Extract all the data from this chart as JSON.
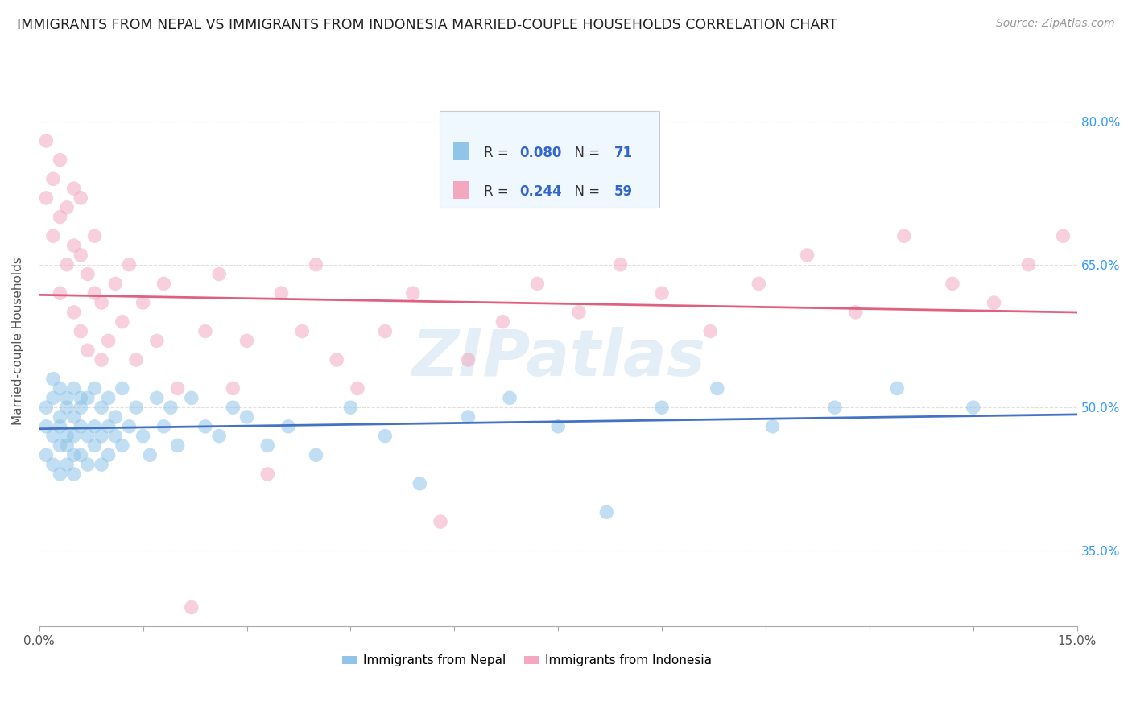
{
  "title": "IMMIGRANTS FROM NEPAL VS IMMIGRANTS FROM INDONESIA MARRIED-COUPLE HOUSEHOLDS CORRELATION CHART",
  "source": "Source: ZipAtlas.com",
  "ylabel": "Married-couple Households",
  "xlim": [
    0.0,
    0.15
  ],
  "ylim": [
    0.27,
    0.87
  ],
  "xticks": [
    0.0,
    0.015,
    0.03,
    0.045,
    0.06,
    0.075,
    0.09,
    0.105,
    0.12,
    0.135,
    0.15
  ],
  "xticklabels": [
    "0.0%",
    "",
    "",
    "",
    "",
    "",
    "",
    "",
    "",
    "",
    "15.0%"
  ],
  "yticks": [
    0.35,
    0.5,
    0.65,
    0.8
  ],
  "yticklabels": [
    "35.0%",
    "50.0%",
    "65.0%",
    "80.0%"
  ],
  "nepal_color": "#90c4e8",
  "indonesia_color": "#f4a8c0",
  "nepal_line_color": "#4472c4",
  "indonesia_line_color": "#e06080",
  "nepal_R": 0.08,
  "nepal_N": 71,
  "indonesia_R": 0.244,
  "indonesia_N": 59,
  "nepal_scatter_x": [
    0.001,
    0.001,
    0.001,
    0.002,
    0.002,
    0.002,
    0.002,
    0.003,
    0.003,
    0.003,
    0.003,
    0.003,
    0.004,
    0.004,
    0.004,
    0.004,
    0.004,
    0.005,
    0.005,
    0.005,
    0.005,
    0.005,
    0.006,
    0.006,
    0.006,
    0.006,
    0.007,
    0.007,
    0.007,
    0.008,
    0.008,
    0.008,
    0.009,
    0.009,
    0.009,
    0.01,
    0.01,
    0.01,
    0.011,
    0.011,
    0.012,
    0.012,
    0.013,
    0.014,
    0.015,
    0.016,
    0.017,
    0.018,
    0.019,
    0.02,
    0.022,
    0.024,
    0.026,
    0.028,
    0.03,
    0.033,
    0.036,
    0.04,
    0.045,
    0.05,
    0.055,
    0.062,
    0.068,
    0.075,
    0.082,
    0.09,
    0.098,
    0.106,
    0.115,
    0.124,
    0.135
  ],
  "nepal_scatter_y": [
    0.48,
    0.5,
    0.45,
    0.47,
    0.51,
    0.44,
    0.53,
    0.49,
    0.46,
    0.52,
    0.43,
    0.48,
    0.51,
    0.47,
    0.44,
    0.5,
    0.46,
    0.49,
    0.45,
    0.52,
    0.47,
    0.43,
    0.51,
    0.48,
    0.45,
    0.5,
    0.47,
    0.44,
    0.51,
    0.48,
    0.46,
    0.52,
    0.47,
    0.44,
    0.5,
    0.48,
    0.45,
    0.51,
    0.47,
    0.49,
    0.46,
    0.52,
    0.48,
    0.5,
    0.47,
    0.45,
    0.51,
    0.48,
    0.5,
    0.46,
    0.51,
    0.48,
    0.47,
    0.5,
    0.49,
    0.46,
    0.48,
    0.45,
    0.5,
    0.47,
    0.42,
    0.49,
    0.51,
    0.48,
    0.39,
    0.5,
    0.52,
    0.48,
    0.5,
    0.52,
    0.5
  ],
  "indonesia_scatter_x": [
    0.001,
    0.001,
    0.002,
    0.002,
    0.003,
    0.003,
    0.003,
    0.004,
    0.004,
    0.005,
    0.005,
    0.005,
    0.006,
    0.006,
    0.006,
    0.007,
    0.007,
    0.008,
    0.008,
    0.009,
    0.009,
    0.01,
    0.011,
    0.012,
    0.013,
    0.014,
    0.015,
    0.017,
    0.018,
    0.02,
    0.022,
    0.024,
    0.026,
    0.028,
    0.03,
    0.033,
    0.035,
    0.038,
    0.04,
    0.043,
    0.046,
    0.05,
    0.054,
    0.058,
    0.062,
    0.067,
    0.072,
    0.078,
    0.084,
    0.09,
    0.097,
    0.104,
    0.111,
    0.118,
    0.125,
    0.132,
    0.138,
    0.143,
    0.148
  ],
  "indonesia_scatter_y": [
    0.78,
    0.72,
    0.68,
    0.74,
    0.62,
    0.7,
    0.76,
    0.65,
    0.71,
    0.67,
    0.73,
    0.6,
    0.66,
    0.72,
    0.58,
    0.64,
    0.56,
    0.62,
    0.68,
    0.55,
    0.61,
    0.57,
    0.63,
    0.59,
    0.65,
    0.55,
    0.61,
    0.57,
    0.63,
    0.52,
    0.29,
    0.58,
    0.64,
    0.52,
    0.57,
    0.43,
    0.62,
    0.58,
    0.65,
    0.55,
    0.52,
    0.58,
    0.62,
    0.38,
    0.55,
    0.59,
    0.63,
    0.6,
    0.65,
    0.62,
    0.58,
    0.63,
    0.66,
    0.6,
    0.68,
    0.63,
    0.61,
    0.65,
    0.68
  ],
  "background_color": "#ffffff",
  "grid_color": "#e0e0e0",
  "watermark": "ZIPatlas"
}
